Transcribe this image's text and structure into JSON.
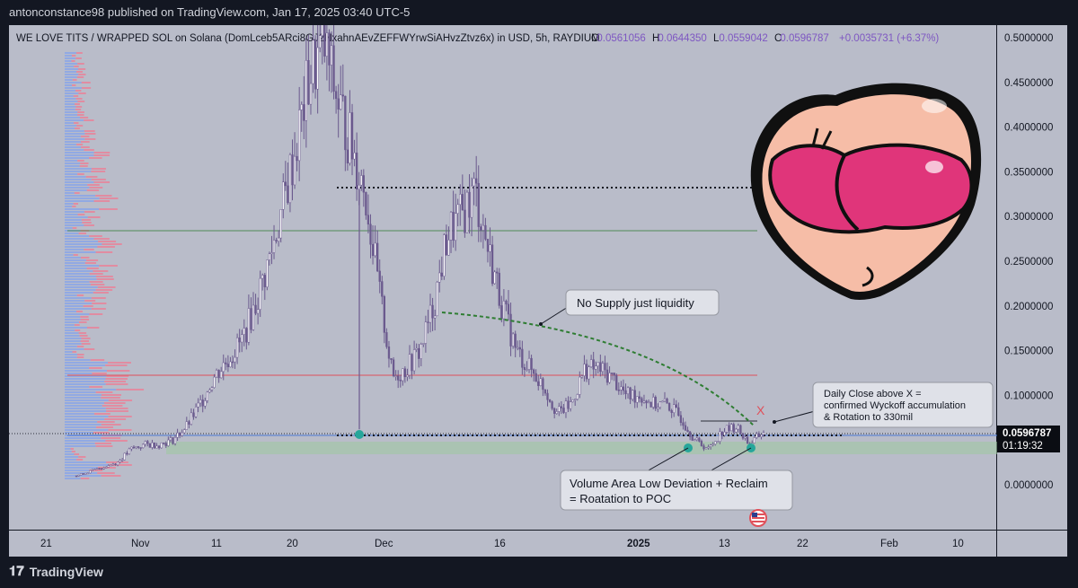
{
  "header": {
    "publisher": "antonconstance98 published on TradingView.com, Jan 17, 2025 03:40 UTC-5"
  },
  "legend": {
    "symbol": "WE LOVE TITS / WRAPPED SOL on Solana (DomLceb5ARci8GJ2NxahnAEvZEFFWYrwSiAHvzZtvz6x) in USD, 5h, RAYDIUM",
    "o_label": "O",
    "o_value": "0.0561056",
    "h_label": "H",
    "h_value": "0.0644350",
    "l_label": "L",
    "l_value": "0.0559042",
    "c_label": "C",
    "c_value": "0.0596787",
    "change": "+0.0035731 (+6.37%)"
  },
  "price_axis": {
    "ticks": [
      "0.5000000",
      "0.4500000",
      "0.4000000",
      "0.3500000",
      "0.3000000",
      "0.2500000",
      "0.2000000",
      "0.1500000",
      "0.1000000",
      "0.0500000",
      "0.0000000"
    ],
    "current_price": "0.0596787",
    "countdown": "01:19:32"
  },
  "time_axis": {
    "ticks": [
      "21",
      "Nov",
      "11",
      "20",
      "Dec",
      "16",
      "2025",
      "13",
      "22",
      "Feb",
      "10"
    ]
  },
  "annotations": {
    "no_supply": "No Supply just liquidity",
    "daily_close_1": "Daily Close above X =",
    "daily_close_2": "confirmed Wyckoff accumulation",
    "daily_close_3": "& Rotation to 330mil",
    "val_1": "Volume Area Low Deviation + Reclaim",
    "val_2": "= Roatation to POC",
    "x_mark": "X"
  },
  "footer": {
    "brand": "TradingView"
  },
  "colors": {
    "background": "#131722",
    "chart_bg": "#b9bcc9",
    "candle": "#6b5a8e",
    "red_line": "#e0505a",
    "green_line": "#4f8a55",
    "green_dash": "#2e7d32",
    "teal_dot": "#26a69a",
    "accent_purple": "#7e57c2"
  },
  "chart_data": {
    "type": "line",
    "title": "WE LOVE TITS / WRAPPED SOL on Solana (DomLceb5ARci8GJ2NxahnAEvZEFFWYrwSiAHvzZtvz6x) in USD, 5h, RAYDIUM",
    "xlabel": "",
    "ylabel": "",
    "ylim": [
      -0.065,
      0.505
    ],
    "grid": false,
    "series": [
      {
        "x": [
          "2024-10-21",
          "2024-10-23",
          "2024-10-25",
          "2024-10-27",
          "2024-10-29",
          "2024-10-31",
          "2024-11-02",
          "2024-11-04",
          "2024-11-06",
          "2024-11-08",
          "2024-11-10",
          "2024-11-12",
          "2024-11-14",
          "2024-11-16",
          "2024-11-18",
          "2024-11-20",
          "2024-11-22",
          "2024-11-23",
          "2024-11-24",
          "2024-11-25",
          "2024-11-26",
          "2024-11-27",
          "2024-11-28",
          "2024-11-29",
          "2024-11-30",
          "2024-12-02",
          "2024-12-04",
          "2024-12-05",
          "2024-12-06",
          "2024-12-07",
          "2024-12-08",
          "2024-12-10",
          "2024-12-12",
          "2024-12-14",
          "2024-12-16",
          "2024-12-18",
          "2024-12-20",
          "2024-12-22",
          "2024-12-24",
          "2024-12-26",
          "2024-12-28",
          "2024-12-30",
          "2025-01-01",
          "2025-01-03",
          "2025-01-05",
          "2025-01-07",
          "2025-01-09",
          "2025-01-11",
          "2025-01-13",
          "2025-01-15",
          "2025-01-17"
        ],
        "values": [
          0.01,
          0.015,
          0.02,
          0.025,
          0.04,
          0.045,
          0.045,
          0.05,
          0.065,
          0.09,
          0.12,
          0.14,
          0.16,
          0.2,
          0.25,
          0.31,
          0.38,
          0.46,
          0.49,
          0.43,
          0.38,
          0.33,
          0.22,
          0.12,
          0.13,
          0.15,
          0.2,
          0.28,
          0.3,
          0.33,
          0.26,
          0.2,
          0.15,
          0.13,
          0.11,
          0.08,
          0.09,
          0.13,
          0.13,
          0.12,
          0.1,
          0.1,
          0.09,
          0.09,
          0.075,
          0.05,
          0.04,
          0.06,
          0.065,
          0.045,
          0.06
        ]
      }
    ],
    "horizontal_levels": [
      {
        "value": 0.335,
        "style": "dotted"
      },
      {
        "value": 0.285,
        "style": "solid",
        "color": "green"
      },
      {
        "value": 0.125,
        "style": "solid",
        "color": "red"
      },
      {
        "value": 0.06,
        "style": "solid",
        "color": "blue"
      },
      {
        "value": 0.055,
        "style": "dotted"
      }
    ]
  }
}
